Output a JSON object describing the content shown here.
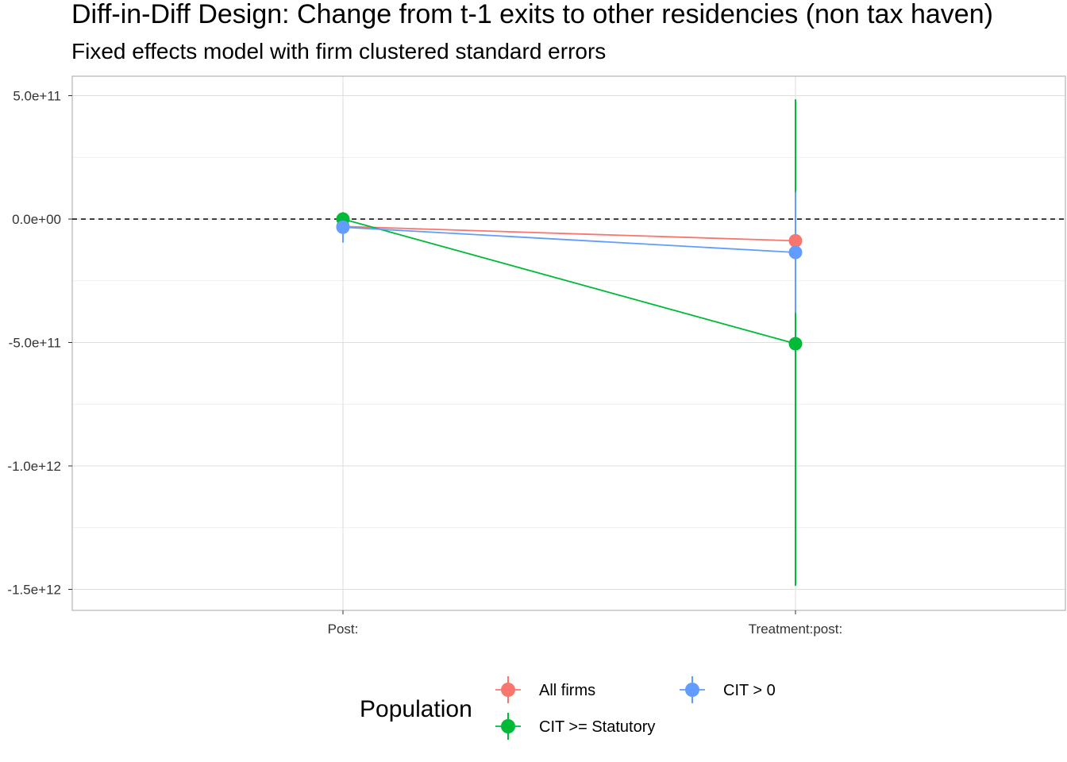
{
  "chart_data": {
    "type": "line",
    "title": "Diff-in-Diff Design: Change from t-1 exits to other residencies (non tax haven)",
    "subtitle": "Fixed effects model with firm clustered standard errors",
    "xlabel": "",
    "ylabel": "",
    "categories": [
      "Post:",
      "Treatment:post:"
    ],
    "y_ticks": [
      {
        "value": 500000000000,
        "label": "5.0e+11"
      },
      {
        "value": 0,
        "label": "0.0e+00"
      },
      {
        "value": -500000000000,
        "label": "-5.0e+11"
      },
      {
        "value": -1000000000000,
        "label": "-1.0e+12"
      },
      {
        "value": -1500000000000,
        "label": "-1.5e+12"
      }
    ],
    "ylim": [
      -1580000000000,
      580000000000
    ],
    "grid": true,
    "reference_line": {
      "value": 0,
      "style": "dashed"
    },
    "legend": {
      "title": "Population",
      "position": "bottom"
    },
    "series": [
      {
        "name": "All firms",
        "color": "#F8766D",
        "values": [
          -30000000000,
          -88000000000
        ],
        "lower": [
          -50000000000,
          -100000000000
        ],
        "upper": [
          -10000000000,
          -76000000000
        ]
      },
      {
        "name": "CIT >= Statutory",
        "color": "#00BA38",
        "values": [
          0,
          -505000000000
        ],
        "lower": [
          -20000000000,
          -1485000000000
        ],
        "upper": [
          20000000000,
          485000000000
        ]
      },
      {
        "name": "CIT > 0",
        "color": "#619CFF",
        "values": [
          -33000000000,
          -135000000000
        ],
        "lower": [
          -95000000000,
          -380000000000
        ],
        "upper": [
          28000000000,
          110000000000
        ]
      }
    ]
  }
}
